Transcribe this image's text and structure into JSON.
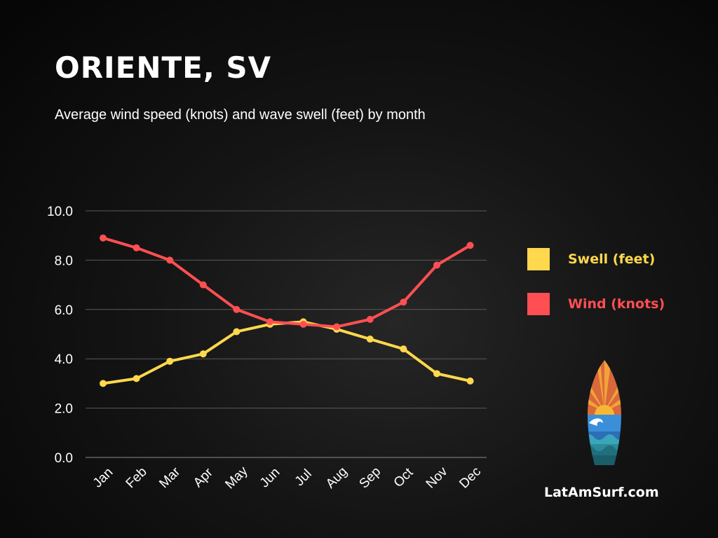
{
  "header": {
    "title": "ORIENTE, SV",
    "subtitle": "Average wind speed (knots) and wave swell (feet) by month"
  },
  "colors": {
    "swell": "#ffd84d",
    "wind": "#ff4f52",
    "grid": "#5a5a5a",
    "text": "#ffffff"
  },
  "legend": {
    "swell_label": "Swell (feet)",
    "wind_label": "Wind (knots)"
  },
  "footer": {
    "site": "LatAmSurf.com",
    "logo_icon": "surfboard-sunset-wave-icon"
  },
  "chart_data": {
    "type": "line",
    "title": "",
    "xlabel": "",
    "ylabel": "",
    "categories": [
      "Jan",
      "Feb",
      "Mar",
      "Apr",
      "May",
      "Jun",
      "Jul",
      "Aug",
      "Sep",
      "Oct",
      "Nov",
      "Dec"
    ],
    "ylim": [
      0,
      10
    ],
    "y_ticks": [
      "0.0",
      "2.0",
      "4.0",
      "6.0",
      "8.0",
      "10.0"
    ],
    "grid": true,
    "legend_position": "right",
    "series": [
      {
        "name": "Swell (feet)",
        "color": "#ffd84d",
        "values": [
          3.0,
          3.2,
          3.9,
          4.2,
          5.1,
          5.4,
          5.5,
          5.2,
          4.8,
          4.4,
          3.4,
          3.1
        ]
      },
      {
        "name": "Wind (knots)",
        "color": "#ff4f52",
        "values": [
          8.9,
          8.5,
          8.0,
          7.0,
          6.0,
          5.5,
          5.4,
          5.3,
          5.6,
          6.3,
          7.8,
          8.6
        ]
      }
    ]
  }
}
